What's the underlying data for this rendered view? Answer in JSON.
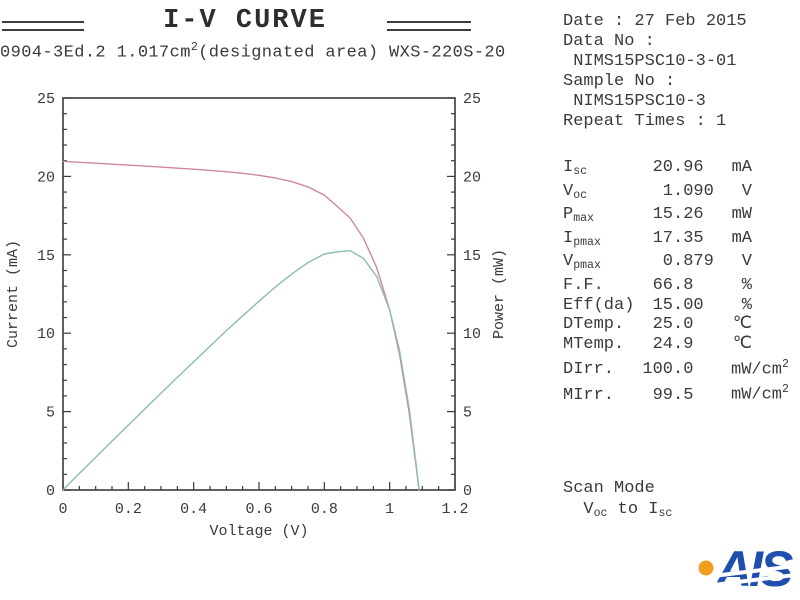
{
  "header": {
    "title": "I-V CURVE",
    "subtitle_segments": [
      {
        "t": "0904-3Ed.2 1.017cm"
      },
      {
        "p": "2"
      },
      {
        "t": "(designated area) WXS-220S-20"
      }
    ]
  },
  "sample_info": {
    "lines": [
      "Date : 27 Feb 2015",
      "Data No :",
      " NIMS15PSC10-3-01",
      "Sample No :",
      " NIMS15PSC10-3",
      "Repeat Times : 1"
    ]
  },
  "measurements": [
    {
      "name": "isc",
      "label": "I",
      "label_sub": "sc",
      "int": "20",
      "frac": ".96",
      "unit": "mA",
      "unit_sup": ""
    },
    {
      "name": "voc",
      "label": "V",
      "label_sub": "oc",
      "int": "1",
      "frac": ".090",
      "unit": "V",
      "unit_sup": ""
    },
    {
      "name": "pmax",
      "label": "P",
      "label_sub": "max",
      "int": "15",
      "frac": ".26",
      "unit": "mW",
      "unit_sup": ""
    },
    {
      "name": "ipmax",
      "label": "I",
      "label_sub": "pmax",
      "int": "17",
      "frac": ".35",
      "unit": "mA",
      "unit_sup": ""
    },
    {
      "name": "vpmax",
      "label": "V",
      "label_sub": "pmax",
      "int": "0",
      "frac": ".879",
      "unit": "V",
      "unit_sup": ""
    },
    {
      "name": "ff",
      "label": "F.F.",
      "label_sub": "",
      "int": "66",
      "frac": ".8",
      "unit": "%",
      "unit_sup": ""
    },
    {
      "name": "eff-da",
      "label": "Eff(da)",
      "label_sub": "",
      "int": "15",
      "frac": ".00",
      "unit": "%",
      "unit_sup": ""
    },
    {
      "name": "dtemp",
      "label": "DTemp.",
      "label_sub": "",
      "int": "25",
      "frac": ".0",
      "unit": "℃",
      "unit_sup": ""
    },
    {
      "name": "mtemp",
      "label": "MTemp.",
      "label_sub": "",
      "int": "24",
      "frac": ".9",
      "unit": "℃",
      "unit_sup": ""
    },
    {
      "name": "dirr",
      "label": "DIrr.",
      "label_sub": "",
      "int": "100",
      "frac": ".0",
      "unit": "mW/cm",
      "unit_sup": "2"
    },
    {
      "name": "mirr",
      "label": "MIrr.",
      "label_sub": "",
      "int": "99",
      "frac": ".5",
      "unit": "mW/cm",
      "unit_sup": "2"
    }
  ],
  "scan_mode": {
    "line1": "Scan Mode",
    "line2_segments": [
      {
        "t": "  V"
      },
      {
        "s": "oc"
      },
      {
        "t": " to I"
      },
      {
        "s": "sc"
      }
    ]
  },
  "logo": {
    "text": "AIS",
    "dot_color": "#f09e1e",
    "text_color": "#1e4fae"
  },
  "chart_data": {
    "type": "line",
    "title": "I-V CURVE",
    "xlabel": "Voltage (V)",
    "ylabel_left": "Current (mA)",
    "ylabel_right": "Power (mW)",
    "xlim": [
      0,
      1.2
    ],
    "ylim_left": [
      0,
      25
    ],
    "ylim_right": [
      0,
      25
    ],
    "grid": false,
    "legend": "none",
    "x_major_ticks": [
      0,
      0.2,
      0.4,
      0.6,
      0.8,
      1,
      1.2
    ],
    "x_tick_labels": [
      "0",
      "0.2",
      "0.4",
      "0.6",
      "0.8",
      "1",
      "1.2"
    ],
    "x_minor_step": 0.05,
    "y_major_ticks": [
      0,
      5,
      10,
      15,
      20,
      25
    ],
    "y_tick_labels": [
      "0",
      "5",
      "10",
      "15",
      "20",
      "25"
    ],
    "y_minor_step": 1,
    "series": [
      {
        "name": "current",
        "axis": "left",
        "color": "#d08898",
        "x": [
          0,
          0.05,
          0.1,
          0.15,
          0.2,
          0.25,
          0.3,
          0.35,
          0.4,
          0.45,
          0.5,
          0.55,
          0.6,
          0.65,
          0.7,
          0.75,
          0.8,
          0.84,
          0.879,
          0.92,
          0.96,
          1.0,
          1.03,
          1.06,
          1.08,
          1.09
        ],
        "y": [
          20.96,
          20.9,
          20.84,
          20.78,
          20.72,
          20.66,
          20.59,
          20.52,
          20.46,
          20.38,
          20.3,
          20.2,
          20.07,
          19.9,
          19.67,
          19.33,
          18.81,
          18.08,
          17.35,
          16.05,
          14.2,
          11.48,
          8.64,
          4.88,
          1.66,
          0.0
        ]
      },
      {
        "name": "power",
        "axis": "right",
        "color": "#8cbcb2",
        "x": [
          0,
          0.05,
          0.1,
          0.15,
          0.2,
          0.25,
          0.3,
          0.35,
          0.4,
          0.45,
          0.5,
          0.55,
          0.6,
          0.65,
          0.7,
          0.75,
          0.8,
          0.84,
          0.879,
          0.92,
          0.96,
          1.0,
          1.03,
          1.06,
          1.08,
          1.09
        ],
        "y": [
          0.0,
          1.05,
          2.08,
          3.12,
          4.14,
          5.16,
          6.18,
          7.18,
          8.18,
          9.17,
          10.15,
          11.11,
          12.04,
          12.94,
          13.77,
          14.5,
          15.05,
          15.19,
          15.26,
          14.77,
          13.63,
          11.48,
          8.9,
          5.17,
          1.79,
          0.0
        ]
      }
    ],
    "key_points": {
      "isc_ma": 20.96,
      "voc_v": 1.09,
      "pmax_mw": 15.26,
      "vpmax_v": 0.879,
      "ipmax_ma": 17.35
    }
  }
}
